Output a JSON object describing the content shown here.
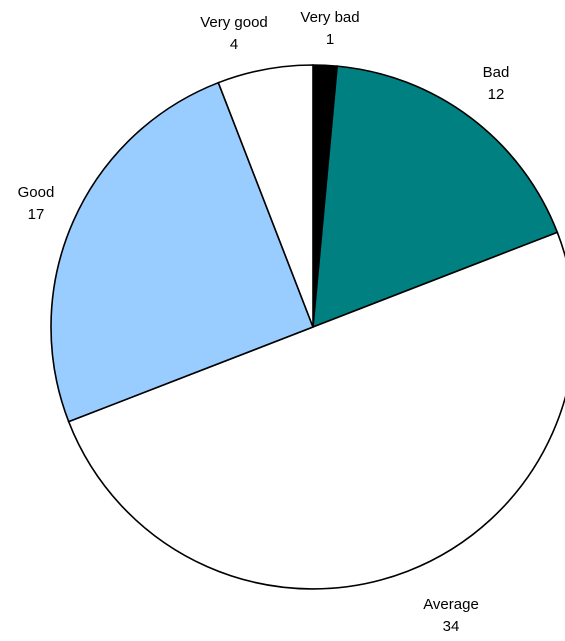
{
  "chart_data": {
    "type": "pie",
    "title": "",
    "slices": [
      {
        "label": "Very bad",
        "value": 1,
        "color": "#000000"
      },
      {
        "label": "Bad",
        "value": 12,
        "color": "#008080"
      },
      {
        "label": "Average",
        "value": 34,
        "color": "#ffffff"
      },
      {
        "label": "Good",
        "value": 17,
        "color": "#99ccff"
      },
      {
        "label": "Very good",
        "value": 4,
        "color": "#ffffff"
      }
    ],
    "start_angle_deg": 0,
    "direction": "clockwise",
    "legend": "none",
    "data_labels": "category name and value"
  }
}
